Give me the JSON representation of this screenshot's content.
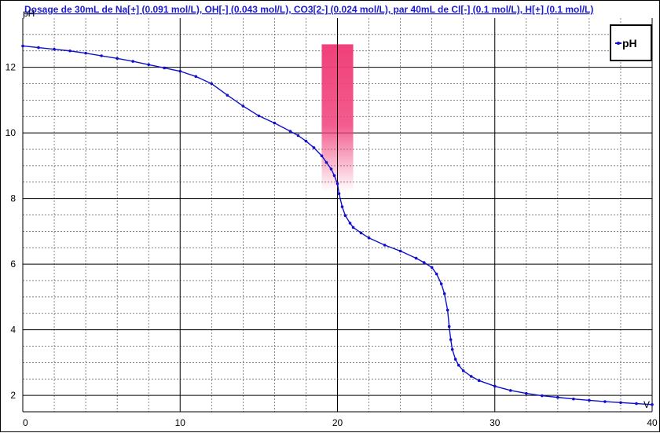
{
  "chart_data": {
    "type": "line",
    "title": "Dosage de 30mL de Na[+] (0.091 mol/L), OH[-] (0.043 mol/L), CO3[2-] (0.024 mol/L),  par 40mL  de Cl[-] (0.1 mol/L), H[+] (0.1 mol/L)",
    "xlabel": "V",
    "ylabel": "pH",
    "xlim": [
      0,
      40
    ],
    "ylim": [
      1.5,
      13.5
    ],
    "x_ticks": [
      0,
      10,
      20,
      30,
      40
    ],
    "y_ticks": [
      2,
      4,
      6,
      8,
      10,
      12
    ],
    "grid": true,
    "legend": {
      "position": "top-right",
      "entries": [
        "pH"
      ]
    },
    "equivalence_volume": 20,
    "indicator_band": {
      "x_range": [
        19,
        21
      ],
      "y_range": [
        8.2,
        12.7
      ]
    },
    "colors": {
      "series": "#1010cc",
      "indicator": "#f0407a",
      "title": "#1a1acc",
      "marker_line": "#000000"
    },
    "series": [
      {
        "name": "pH",
        "x": [
          0,
          1,
          2,
          3,
          4,
          5,
          6,
          7,
          8,
          9,
          10,
          11,
          12,
          13,
          14,
          15,
          16,
          17,
          17.5,
          18,
          18.5,
          19,
          19.3,
          19.6,
          19.8,
          20,
          20.1,
          20.3,
          20.5,
          20.8,
          21,
          21.5,
          22,
          23,
          24,
          25,
          25.5,
          26,
          26.3,
          26.6,
          26.8,
          27,
          27.1,
          27.2,
          27.3,
          27.5,
          27.7,
          28,
          28.5,
          29,
          30,
          31,
          32,
          33,
          34,
          35,
          36,
          37,
          38,
          39,
          40
        ],
        "y": [
          12.65,
          12.6,
          12.55,
          12.5,
          12.43,
          12.35,
          12.27,
          12.18,
          12.08,
          11.98,
          11.88,
          11.72,
          11.5,
          11.15,
          10.82,
          10.52,
          10.3,
          10.05,
          9.92,
          9.75,
          9.55,
          9.3,
          9.1,
          8.9,
          8.7,
          8.45,
          8.15,
          7.75,
          7.48,
          7.25,
          7.12,
          6.95,
          6.8,
          6.58,
          6.4,
          6.18,
          6.05,
          5.9,
          5.7,
          5.4,
          5.1,
          4.6,
          4.1,
          3.7,
          3.4,
          3.1,
          2.92,
          2.75,
          2.58,
          2.45,
          2.28,
          2.15,
          2.06,
          1.99,
          1.94,
          1.89,
          1.85,
          1.81,
          1.78,
          1.75,
          1.72
        ]
      }
    ]
  }
}
